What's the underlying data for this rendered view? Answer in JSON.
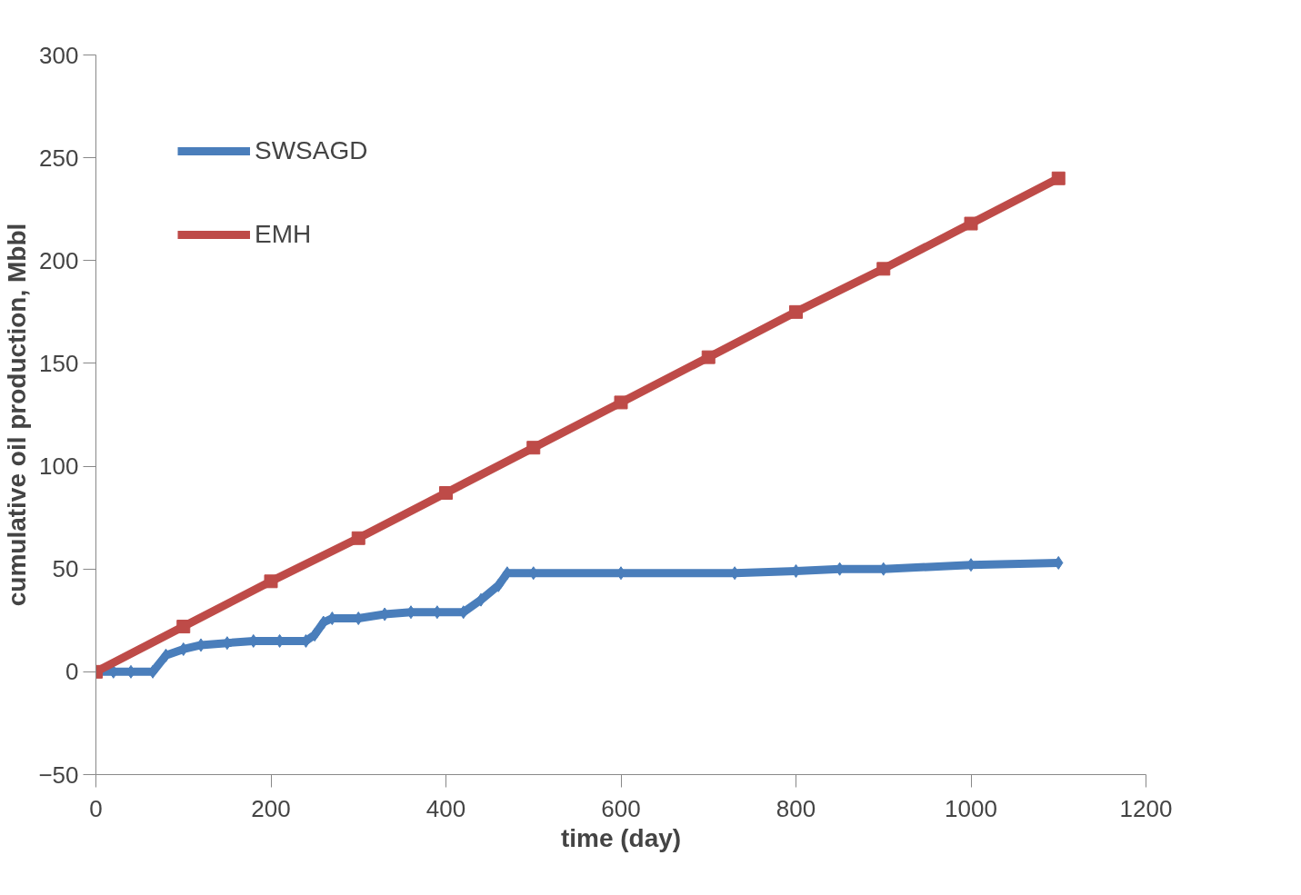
{
  "chart_data": {
    "type": "line",
    "xlabel": "time (day)",
    "ylabel": "cumulative oil production, Mbbl",
    "xlim": [
      0,
      1200
    ],
    "ylim": [
      -50,
      300
    ],
    "xticks": [
      0,
      200,
      400,
      600,
      800,
      1000,
      1200
    ],
    "yticks": [
      -50,
      0,
      50,
      100,
      150,
      200,
      250,
      300
    ],
    "grid": false,
    "legend": "top left",
    "series": [
      {
        "name": "SWSAGD",
        "color": "#4a7ebb",
        "marker": "diamond",
        "x": [
          0,
          20,
          40,
          65,
          80,
          100,
          120,
          150,
          180,
          210,
          240,
          250,
          260,
          270,
          300,
          330,
          360,
          390,
          420,
          440,
          460,
          470,
          500,
          600,
          730,
          800,
          850,
          900,
          1000,
          1100
        ],
        "values": [
          0,
          0,
          0,
          0,
          8,
          11,
          13,
          14,
          15,
          15,
          15,
          18,
          24,
          26,
          26,
          28,
          29,
          29,
          29,
          35,
          42,
          48,
          48,
          48,
          48,
          49,
          50,
          50,
          52,
          53
        ]
      },
      {
        "name": "EMH",
        "color": "#be4b48",
        "marker": "square",
        "x": [
          0,
          100,
          200,
          300,
          400,
          500,
          600,
          700,
          800,
          900,
          1000,
          1100
        ],
        "values": [
          0,
          22,
          44,
          65,
          87,
          109,
          131,
          153,
          175,
          196,
          218,
          240
        ]
      }
    ]
  }
}
